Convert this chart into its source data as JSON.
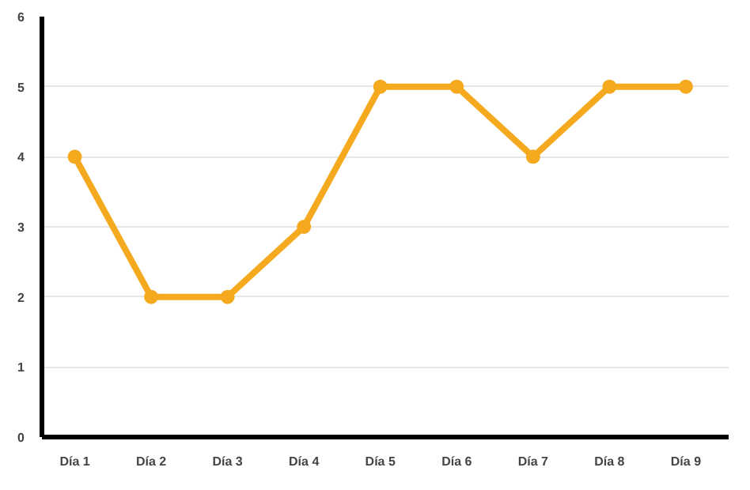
{
  "chart_data": {
    "type": "line",
    "categories": [
      "Día 1",
      "Día 2",
      "Día 3",
      "Día 4",
      "Día 5",
      "Día 6",
      "Día 7",
      "Día 8",
      "Día 9"
    ],
    "series": [
      {
        "color": "#f5a91e",
        "values": [
          4,
          2,
          2,
          3,
          5,
          5,
          4,
          5,
          5
        ]
      }
    ],
    "ylim": [
      0,
      6
    ],
    "yticks": [
      0,
      1,
      2,
      3,
      4,
      5,
      6
    ],
    "grid": "y",
    "marker": "circle",
    "line_style": "solid"
  }
}
